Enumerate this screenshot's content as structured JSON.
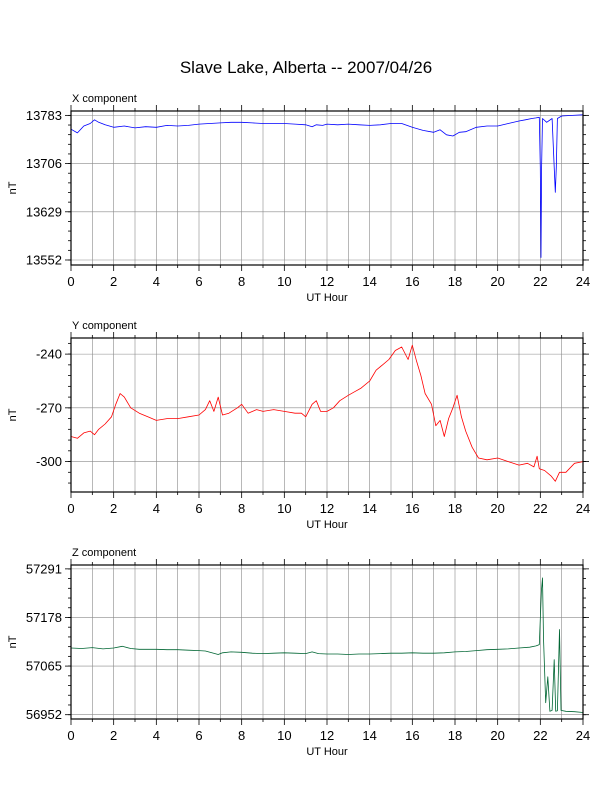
{
  "title": "Slave Lake, Alberta -- 2007/04/26",
  "chart_data": [
    {
      "type": "line",
      "panel_label": "X component",
      "xlabel": "UT Hour",
      "ylabel": "nT",
      "xlim": [
        0,
        24
      ],
      "ylim": [
        13544,
        13790
      ],
      "xticks": [
        0,
        2,
        4,
        6,
        8,
        10,
        12,
        14,
        16,
        18,
        20,
        22,
        24
      ],
      "yticks": [
        13552,
        13629,
        13706,
        13783
      ],
      "grid": true,
      "color": "#0000ff",
      "points": [
        [
          0,
          13761
        ],
        [
          0.3,
          13755
        ],
        [
          0.6,
          13766
        ],
        [
          0.9,
          13770
        ],
        [
          1.1,
          13776
        ],
        [
          1.3,
          13772
        ],
        [
          1.6,
          13768
        ],
        [
          2,
          13764
        ],
        [
          2.5,
          13766
        ],
        [
          3,
          13763
        ],
        [
          3.5,
          13765
        ],
        [
          4,
          13764
        ],
        [
          4.5,
          13767
        ],
        [
          5,
          13766
        ],
        [
          5.5,
          13767
        ],
        [
          6,
          13769
        ],
        [
          6.5,
          13770
        ],
        [
          7,
          13771
        ],
        [
          7.5,
          13772
        ],
        [
          8,
          13772
        ],
        [
          8.5,
          13771
        ],
        [
          9,
          13770
        ],
        [
          9.5,
          13770
        ],
        [
          10,
          13770
        ],
        [
          10.5,
          13769
        ],
        [
          11,
          13768
        ],
        [
          11.3,
          13765
        ],
        [
          11.5,
          13768
        ],
        [
          11.8,
          13767
        ],
        [
          12,
          13769
        ],
        [
          12.5,
          13768
        ],
        [
          13,
          13769
        ],
        [
          13.5,
          13768
        ],
        [
          14,
          13767
        ],
        [
          14.5,
          13768
        ],
        [
          15,
          13770
        ],
        [
          15.5,
          13770
        ],
        [
          16,
          13764
        ],
        [
          16.5,
          13759
        ],
        [
          17,
          13756
        ],
        [
          17.3,
          13760
        ],
        [
          17.6,
          13752
        ],
        [
          17.9,
          13750
        ],
        [
          18.2,
          13756
        ],
        [
          18.5,
          13757
        ],
        [
          19,
          13764
        ],
        [
          19.5,
          13766
        ],
        [
          20,
          13766
        ],
        [
          20.5,
          13770
        ],
        [
          21,
          13774
        ],
        [
          21.3,
          13776
        ],
        [
          21.6,
          13778
        ],
        [
          21.8,
          13779
        ],
        [
          21.95,
          13780
        ],
        [
          22.0,
          13700
        ],
        [
          22.03,
          13556
        ],
        [
          22.06,
          13700
        ],
        [
          22.1,
          13778
        ],
        [
          22.3,
          13772
        ],
        [
          22.55,
          13778
        ],
        [
          22.65,
          13700
        ],
        [
          22.7,
          13660
        ],
        [
          22.75,
          13700
        ],
        [
          22.8,
          13778
        ],
        [
          23,
          13782
        ],
        [
          23.5,
          13783
        ],
        [
          24,
          13784
        ]
      ]
    },
    {
      "type": "line",
      "panel_label": "Y component",
      "xlabel": "UT Hour",
      "ylabel": "nT",
      "xlim": [
        0,
        24
      ],
      "ylim": [
        -317,
        -231
      ],
      "xticks": [
        0,
        2,
        4,
        6,
        8,
        10,
        12,
        14,
        16,
        18,
        20,
        22,
        24
      ],
      "yticks": [
        -240,
        -270,
        -300
      ],
      "grid": true,
      "color": "#ff0000",
      "points": [
        [
          0,
          -286
        ],
        [
          0.3,
          -287
        ],
        [
          0.6,
          -284
        ],
        [
          0.9,
          -283
        ],
        [
          1.1,
          -285
        ],
        [
          1.3,
          -282
        ],
        [
          1.6,
          -279
        ],
        [
          1.9,
          -275
        ],
        [
          2.1,
          -268
        ],
        [
          2.3,
          -262
        ],
        [
          2.5,
          -264
        ],
        [
          2.8,
          -270
        ],
        [
          3.2,
          -273
        ],
        [
          3.6,
          -275
        ],
        [
          4,
          -277
        ],
        [
          4.5,
          -276
        ],
        [
          5,
          -276
        ],
        [
          5.5,
          -275
        ],
        [
          6,
          -274
        ],
        [
          6.3,
          -271
        ],
        [
          6.5,
          -266
        ],
        [
          6.7,
          -272
        ],
        [
          6.9,
          -264
        ],
        [
          7.1,
          -274
        ],
        [
          7.4,
          -273
        ],
        [
          7.8,
          -270
        ],
        [
          8,
          -268
        ],
        [
          8.3,
          -273
        ],
        [
          8.7,
          -271
        ],
        [
          9,
          -272
        ],
        [
          9.5,
          -271
        ],
        [
          10,
          -272
        ],
        [
          10.5,
          -273
        ],
        [
          10.8,
          -273
        ],
        [
          11,
          -275
        ],
        [
          11.3,
          -268
        ],
        [
          11.5,
          -266
        ],
        [
          11.7,
          -272
        ],
        [
          12,
          -272
        ],
        [
          12.3,
          -270
        ],
        [
          12.6,
          -266
        ],
        [
          13,
          -263
        ],
        [
          13.3,
          -261
        ],
        [
          13.6,
          -259
        ],
        [
          14,
          -255
        ],
        [
          14.3,
          -249
        ],
        [
          14.6,
          -246
        ],
        [
          14.9,
          -243
        ],
        [
          15.2,
          -238
        ],
        [
          15.5,
          -236
        ],
        [
          15.8,
          -243
        ],
        [
          16.0,
          -235
        ],
        [
          16.2,
          -244
        ],
        [
          16.4,
          -252
        ],
        [
          16.6,
          -262
        ],
        [
          16.9,
          -268
        ],
        [
          17.1,
          -280
        ],
        [
          17.3,
          -277
        ],
        [
          17.5,
          -286
        ],
        [
          17.7,
          -276
        ],
        [
          17.9,
          -270
        ],
        [
          18.1,
          -263
        ],
        [
          18.3,
          -275
        ],
        [
          18.5,
          -283
        ],
        [
          18.8,
          -292
        ],
        [
          19.1,
          -298
        ],
        [
          19.5,
          -299
        ],
        [
          20,
          -298
        ],
        [
          20.5,
          -300
        ],
        [
          21,
          -302
        ],
        [
          21.4,
          -301
        ],
        [
          21.7,
          -303
        ],
        [
          21.85,
          -297
        ],
        [
          21.95,
          -304
        ],
        [
          22.2,
          -305
        ],
        [
          22.5,
          -308
        ],
        [
          22.7,
          -311
        ],
        [
          22.9,
          -306
        ],
        [
          23.2,
          -306
        ],
        [
          23.6,
          -301
        ],
        [
          24,
          -300
        ]
      ]
    },
    {
      "type": "line",
      "panel_label": "Z component",
      "xlabel": "UT Hour",
      "ylabel": "nT",
      "xlim": [
        0,
        24
      ],
      "ylim": [
        56942,
        57300
      ],
      "xticks": [
        0,
        2,
        4,
        6,
        8,
        10,
        12,
        14,
        16,
        18,
        20,
        22,
        24
      ],
      "yticks": [
        56952,
        57065,
        57178,
        57291
      ],
      "grid": true,
      "color": "#006633",
      "points": [
        [
          0,
          57107
        ],
        [
          0.5,
          57106
        ],
        [
          1,
          57108
        ],
        [
          1.5,
          57105
        ],
        [
          2,
          57107
        ],
        [
          2.4,
          57111
        ],
        [
          2.8,
          57106
        ],
        [
          3.2,
          57104
        ],
        [
          3.6,
          57104
        ],
        [
          4,
          57104
        ],
        [
          4.5,
          57103
        ],
        [
          5,
          57103
        ],
        [
          5.5,
          57102
        ],
        [
          6,
          57101
        ],
        [
          6.3,
          57100
        ],
        [
          6.6,
          57096
        ],
        [
          6.9,
          57092
        ],
        [
          7.1,
          57096
        ],
        [
          7.5,
          57098
        ],
        [
          8,
          57097
        ],
        [
          8.5,
          57095
        ],
        [
          9,
          57094
        ],
        [
          9.5,
          57095
        ],
        [
          10,
          57096
        ],
        [
          10.5,
          57095
        ],
        [
          11,
          57094
        ],
        [
          11.3,
          57098
        ],
        [
          11.6,
          57094
        ],
        [
          12,
          57093
        ],
        [
          12.5,
          57093
        ],
        [
          13,
          57092
        ],
        [
          13.5,
          57093
        ],
        [
          14,
          57093
        ],
        [
          14.5,
          57094
        ],
        [
          15,
          57095
        ],
        [
          15.5,
          57095
        ],
        [
          16,
          57096
        ],
        [
          16.5,
          57095
        ],
        [
          17,
          57095
        ],
        [
          17.5,
          57096
        ],
        [
          18,
          57098
        ],
        [
          18.5,
          57099
        ],
        [
          19,
          57101
        ],
        [
          19.5,
          57103
        ],
        [
          20,
          57104
        ],
        [
          20.5,
          57105
        ],
        [
          21,
          57107
        ],
        [
          21.5,
          57109
        ],
        [
          21.8,
          57112
        ],
        [
          21.95,
          57115
        ],
        [
          22.05,
          57240
        ],
        [
          22.1,
          57270
        ],
        [
          22.15,
          57130
        ],
        [
          22.25,
          56980
        ],
        [
          22.35,
          57040
        ],
        [
          22.45,
          56960
        ],
        [
          22.55,
          56962
        ],
        [
          22.65,
          57080
        ],
        [
          22.72,
          56960
        ],
        [
          22.8,
          56961
        ],
        [
          22.9,
          57150
        ],
        [
          22.97,
          56962
        ],
        [
          23.2,
          56960
        ],
        [
          23.6,
          56959
        ],
        [
          24,
          56957
        ]
      ]
    }
  ]
}
